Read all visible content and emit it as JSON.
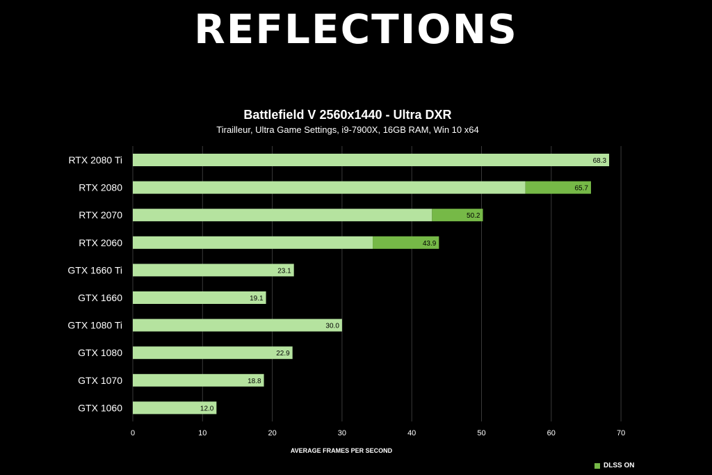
{
  "headline": "REFLECTIONS",
  "colors": {
    "background": "#000000",
    "base_bar": "#b5e39f",
    "dlss_bar": "#76b947",
    "grid": "#3a3a3a",
    "text": "#ffffff",
    "label_text": "#000000"
  },
  "chart_data": {
    "type": "bar",
    "orientation": "horizontal",
    "title": "Battlefield V 2560x1440 - Ultra DXR",
    "subtitle": "Tirailleur, Ultra Game Settings, i9-7900X, 16GB RAM, Win 10 x64",
    "xlabel": "AVERAGE FRAMES PER SECOND",
    "ylabel": "",
    "xlim": [
      0,
      70
    ],
    "xticks": [
      "0",
      "10",
      "20",
      "30",
      "40",
      "50",
      "60",
      "70"
    ],
    "grid": true,
    "legend": {
      "position": "bottom-right",
      "entries": [
        "DLSS ON"
      ]
    },
    "categories": [
      "RTX 2080 Ti",
      "RTX 2080",
      "RTX 2070",
      "RTX 2060",
      "GTX 1660 Ti",
      "GTX 1660",
      "GTX 1080 Ti",
      "GTX 1080",
      "GTX 1070",
      "GTX 1060"
    ],
    "series": [
      {
        "values": [
          68.3,
          56.3,
          42.9,
          34.4,
          23.1,
          19.1,
          30.0,
          22.9,
          18.8,
          12.0
        ]
      },
      {
        "name": "DLSS ON",
        "values": [
          null,
          65.7,
          50.2,
          43.9,
          null,
          null,
          null,
          null,
          null,
          null
        ]
      }
    ],
    "data_labels": [
      "68.3",
      "65.7",
      "50.2",
      "43.9",
      "23.1",
      "19.1",
      "30.0",
      "22.9",
      "18.8",
      "12.0"
    ]
  }
}
